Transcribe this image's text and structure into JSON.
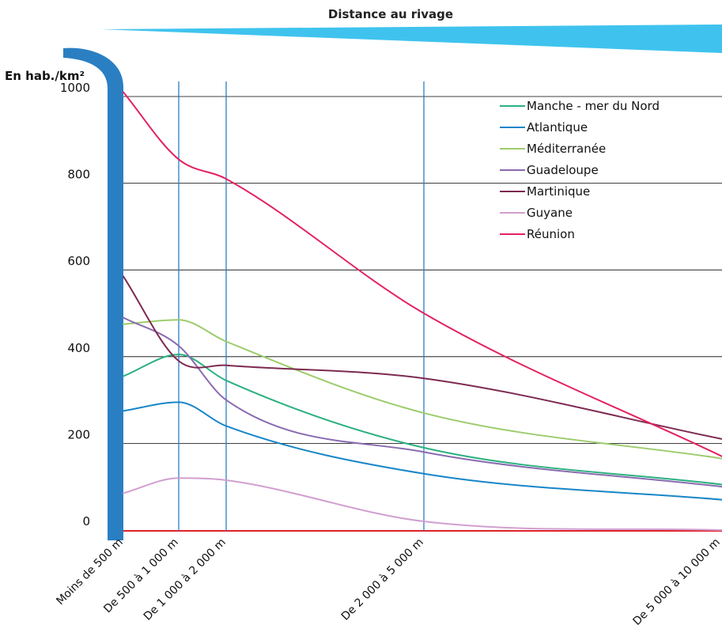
{
  "chart_data": {
    "type": "line",
    "title": "Distance au rivage",
    "xlabel": "",
    "ylabel": "En hab./km²",
    "ylim": [
      0,
      1000
    ],
    "yticks": [
      0,
      200,
      400,
      600,
      800,
      1000
    ],
    "grid": true,
    "legend_position": "top-right",
    "categories": [
      "Moins de 500 m",
      "De 500 à 1 000 m",
      "De 1 000 à 2 000 m",
      "De 2 000 à 5 000 m",
      "De 5 000 à 10 000 m"
    ],
    "series": [
      {
        "name": "Manche - mer du Nord",
        "color": "#2bb07f",
        "values": [
          355,
          405,
          345,
          190,
          105
        ]
      },
      {
        "name": "Atlantique",
        "color": "#1786c8",
        "values": [
          275,
          295,
          240,
          130,
          70
        ]
      },
      {
        "name": "Méditerranée",
        "color": "#9ccc6c",
        "values": [
          475,
          485,
          435,
          270,
          165
        ]
      },
      {
        "name": "Guadeloupe",
        "color": "#8a6bb0",
        "values": [
          490,
          425,
          300,
          180,
          100
        ]
      },
      {
        "name": "Martinique",
        "color": "#7d2a52",
        "values": [
          585,
          390,
          380,
          350,
          210
        ]
      },
      {
        "name": "Guyane",
        "color": "#d19fcf",
        "values": [
          85,
          120,
          115,
          20,
          0
        ]
      },
      {
        "name": "Réunion",
        "color": "#e3225f",
        "values": [
          1010,
          855,
          810,
          500,
          170
        ]
      }
    ]
  }
}
